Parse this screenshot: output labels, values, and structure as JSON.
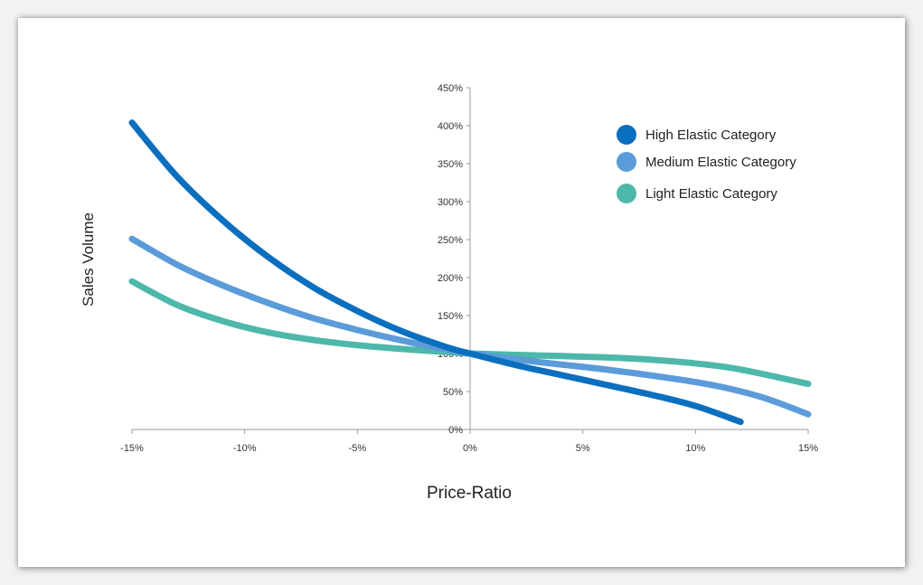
{
  "chart_data": {
    "type": "line",
    "xlabel": "Price-Ratio",
    "ylabel": "Sales Volume",
    "xlim": [
      -15,
      15
    ],
    "ylim": [
      0,
      450
    ],
    "x_ticks": [
      -15,
      -10,
      -5,
      0,
      5,
      10,
      15
    ],
    "x_tick_labels": [
      "-15%",
      "-10%",
      "-5%",
      "0%",
      "5%",
      "10%",
      "15%"
    ],
    "y_ticks": [
      0,
      50,
      100,
      150,
      200,
      250,
      300,
      350,
      400,
      450
    ],
    "y_tick_labels": [
      "0%",
      "50%",
      "100%",
      "150%",
      "200%",
      "250%",
      "300%",
      "350%",
      "400%",
      "450%"
    ],
    "legend_position": "top-right",
    "series": [
      {
        "name": "High Elastic Category",
        "color": "#0b6fbf",
        "points": [
          [
            -15,
            404
          ],
          [
            -13,
            333
          ],
          [
            -11,
            276
          ],
          [
            -9,
            228
          ],
          [
            -7,
            188
          ],
          [
            -5,
            156
          ],
          [
            -3,
            129
          ],
          [
            -1,
            108
          ],
          [
            0,
            100
          ],
          [
            2,
            85
          ],
          [
            4,
            72
          ],
          [
            6,
            59
          ],
          [
            8,
            46
          ],
          [
            10,
            31
          ],
          [
            12,
            10
          ]
        ]
      },
      {
        "name": "Medium Elastic Category",
        "color": "#5b9bd9",
        "points": [
          [
            -15,
            251
          ],
          [
            -13,
            217
          ],
          [
            -11,
            190
          ],
          [
            -9,
            167
          ],
          [
            -7,
            147
          ],
          [
            -5,
            131
          ],
          [
            -3,
            117
          ],
          [
            -1,
            105
          ],
          [
            0,
            100
          ],
          [
            3,
            89
          ],
          [
            6,
            79
          ],
          [
            9,
            67
          ],
          [
            11,
            57
          ],
          [
            13,
            42
          ],
          [
            15,
            20
          ]
        ]
      },
      {
        "name": "Light Elastic Category",
        "color": "#4db8a9",
        "points": [
          [
            -15,
            195
          ],
          [
            -13,
            164
          ],
          [
            -11,
            143
          ],
          [
            -9,
            128
          ],
          [
            -7,
            118
          ],
          [
            -5,
            111
          ],
          [
            -3,
            106
          ],
          [
            -1,
            102
          ],
          [
            0,
            100
          ],
          [
            3,
            97.5
          ],
          [
            6,
            95
          ],
          [
            8,
            92
          ],
          [
            10,
            87
          ],
          [
            12,
            79
          ],
          [
            15,
            60
          ]
        ]
      }
    ]
  }
}
